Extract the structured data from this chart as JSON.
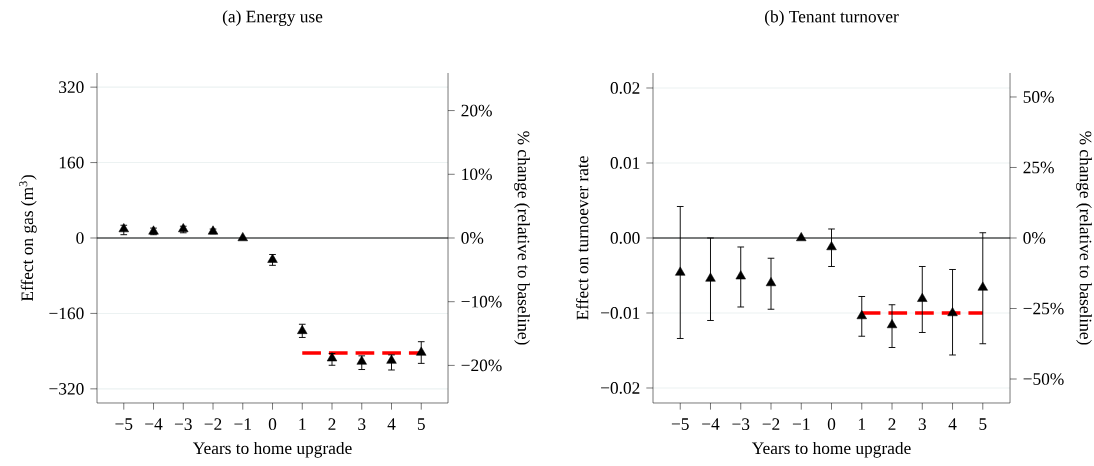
{
  "chart_data": [
    {
      "type": "scatter",
      "title": "(a) Energy use",
      "xlabel": "Years to home upgrade",
      "ylabel": "Effect on  gas (m$^{3}$)",
      "y2label": "% change (relative to baseline)",
      "x": [
        -5,
        -4,
        -3,
        -2,
        -1,
        0,
        1,
        2,
        3,
        4,
        5
      ],
      "series": [
        {
          "color": "#000000",
          "marker": "triangle",
          "values": [
            19,
            14,
            19,
            14,
            0,
            -46,
            -197,
            -255,
            -262,
            -260,
            -243
          ],
          "errors": [
            [
              7,
              27
            ],
            [
              7,
              21
            ],
            [
              11,
              25
            ],
            [
              9,
              19
            ],
            null,
            [
              -58,
              -35
            ],
            [
              -211,
              -183
            ],
            [
              -270,
              -245
            ],
            [
              -279,
              -250
            ],
            [
              -280,
              -248
            ],
            [
              -266,
              -220
            ]
          ]
        },
        {
          "type": "line",
          "color": "#ff0000",
          "line_style": "dashed",
          "marker": "none",
          "values": [
            null,
            null,
            null,
            null,
            null,
            null,
            -244,
            -244,
            -244,
            -244,
            -244
          ]
        }
      ],
      "xlim": [
        -5.9,
        5.9
      ],
      "ylim": [
        -350,
        350
      ],
      "y2lim": [
        -25.9,
        25.9
      ],
      "xticks": [
        {
          "value": -5,
          "label": "−5"
        },
        {
          "value": -4,
          "label": "−4"
        },
        {
          "value": -3,
          "label": "−3"
        },
        {
          "value": -2,
          "label": "−2"
        },
        {
          "value": -1,
          "label": "−1"
        },
        0,
        1,
        2,
        3,
        4,
        5
      ],
      "yticks": [
        {
          "value": -320,
          "label": "−320"
        },
        {
          "value": -160,
          "label": "−160"
        },
        0,
        160,
        320
      ],
      "y2ticks": [
        {
          "value": -20,
          "label": "−20%"
        },
        {
          "value": -10,
          "label": "−10%"
        },
        {
          "value": 0,
          "label": "0%"
        },
        {
          "value": 10,
          "label": "10%"
        },
        {
          "value": 20,
          "label": "20%"
        }
      ],
      "ref_lines": [
        {
          "axis": "y",
          "value": 0,
          "color": "#000000"
        }
      ],
      "grid": "y"
    },
    {
      "type": "scatter",
      "title": "(b) Tenant turnover",
      "xlabel": "Years to home upgrade",
      "ylabel": "Effect on  turnoever rate",
      "y2label": "% change (relative to baseline)",
      "x": [
        -5,
        -4,
        -3,
        -2,
        -1,
        0,
        1,
        2,
        3,
        4,
        5
      ],
      "series": [
        {
          "color": "#000000",
          "marker": "triangle",
          "values": [
            -0.0046,
            -0.0054,
            -0.0051,
            -0.006,
            0.0,
            -0.0012,
            -0.0104,
            -0.0116,
            -0.0081,
            -0.01,
            -0.0066
          ],
          "errors": [
            [
              -0.0134,
              0.0042
            ],
            [
              -0.011,
              0.0
            ],
            [
              -0.0092,
              -0.0012
            ],
            [
              -0.0095,
              -0.0027
            ],
            null,
            [
              -0.0038,
              0.0012
            ],
            [
              -0.0131,
              -0.0078
            ],
            [
              -0.0146,
              -0.0089
            ],
            [
              -0.0126,
              -0.0038
            ],
            [
              -0.0156,
              -0.0042
            ],
            [
              -0.0141,
              0.0007
            ]
          ]
        },
        {
          "type": "line",
          "color": "#ff0000",
          "line_style": "dashed",
          "marker": "none",
          "values": [
            null,
            null,
            null,
            null,
            null,
            null,
            -0.01,
            -0.01,
            -0.01,
            -0.01,
            -0.01
          ]
        }
      ],
      "xlim": [
        -5.9,
        5.9
      ],
      "ylim": [
        -0.022,
        0.022
      ],
      "y2lim": [
        -58.5,
        58.5
      ],
      "xticks": [
        {
          "value": -5,
          "label": "−5"
        },
        {
          "value": -4,
          "label": "−4"
        },
        {
          "value": -3,
          "label": "−3"
        },
        {
          "value": -2,
          "label": "−2"
        },
        {
          "value": -1,
          "label": "−1"
        },
        0,
        1,
        2,
        3,
        4,
        5
      ],
      "yticks": [
        {
          "value": -0.02,
          "label": "−0.02"
        },
        {
          "value": -0.01,
          "label": "−0.01"
        },
        {
          "value": 0,
          "label": "0.00"
        },
        0.01,
        0.02
      ],
      "y2ticks": [
        {
          "value": -50,
          "label": "−50%"
        },
        {
          "value": -25,
          "label": "−25%"
        },
        {
          "value": 0,
          "label": "0%"
        },
        {
          "value": 25,
          "label": "25%"
        },
        {
          "value": 50,
          "label": "50%"
        }
      ],
      "ref_lines": [
        {
          "axis": "y",
          "value": 0,
          "color": "#000000"
        }
      ],
      "grid": "y"
    }
  ]
}
